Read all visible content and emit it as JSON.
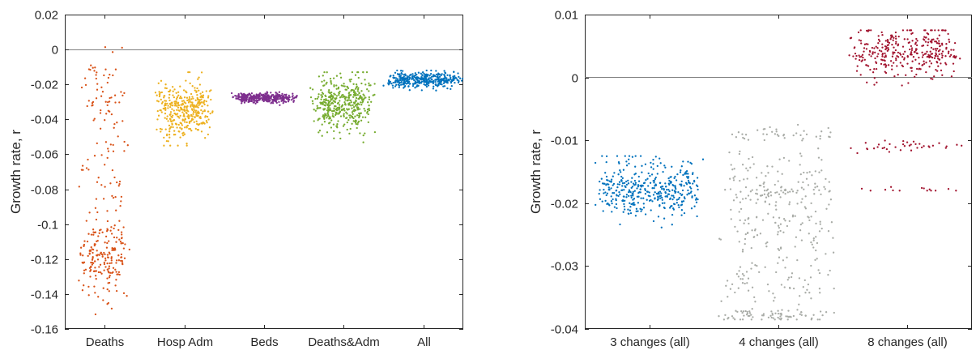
{
  "chart_data": [
    {
      "type": "scatter",
      "title": "",
      "xlabel": "",
      "ylabel": "Growth rate, r",
      "ylim": [
        -0.16,
        0.02
      ],
      "yticks": [
        0.02,
        0,
        -0.02,
        -0.04,
        -0.06,
        -0.08,
        -0.1,
        -0.12,
        -0.14,
        -0.16
      ],
      "ytick_labels": [
        "0.02",
        "0",
        "-0.02",
        "-0.04",
        "-0.06",
        "-0.08",
        "-0.1",
        "-0.12",
        "-0.14",
        "-0.16"
      ],
      "categories": [
        "Deaths",
        "Hosp Adm",
        "Beds",
        "Deaths&Adm",
        "All"
      ],
      "reference_line_y": 0,
      "series": [
        {
          "color": "#d95319",
          "approx_count": 300,
          "clusters": [
            {
              "center": -0.118,
              "sd": 0.011,
              "weight": 0.66
            },
            {
              "center": -0.075,
              "sd": 0.012,
              "weight": 0.12
            },
            {
              "center": -0.03,
              "sd": 0.013,
              "weight": 0.22
            }
          ],
          "range": [
            -0.152,
            0.005
          ],
          "spread": 0.34
        },
        {
          "color": "#edb120",
          "approx_count": 380,
          "clusters": [
            {
              "center": -0.035,
              "sd": 0.0075,
              "weight": 1.0
            }
          ],
          "range": [
            -0.055,
            -0.013
          ],
          "spread": 0.38
        },
        {
          "color": "#7e2f8e",
          "approx_count": 340,
          "clusters": [
            {
              "center": -0.0275,
              "sd": 0.0014,
              "weight": 1.0
            }
          ],
          "range": [
            -0.032,
            -0.023
          ],
          "spread": 0.44
        },
        {
          "color": "#77ac30",
          "approx_count": 420,
          "clusters": [
            {
              "center": -0.031,
              "sd": 0.0075,
              "weight": 1.0
            }
          ],
          "range": [
            -0.054,
            -0.013
          ],
          "spread": 0.42
        },
        {
          "color": "#0072bd",
          "approx_count": 380,
          "clusters": [
            {
              "center": -0.0175,
              "sd": 0.0022,
              "weight": 1.0
            }
          ],
          "range": [
            -0.026,
            -0.012
          ],
          "spread": 0.52
        }
      ]
    },
    {
      "type": "scatter",
      "title": "",
      "xlabel": "",
      "ylabel": "Growth rate, r",
      "ylim": [
        -0.04,
        0.01
      ],
      "yticks": [
        0.01,
        0,
        -0.01,
        -0.02,
        -0.03,
        -0.04
      ],
      "ytick_labels": [
        "0.01",
        "0",
        "-0.01",
        "-0.02",
        "-0.03",
        "-0.04"
      ],
      "categories": [
        "3 changes (all)",
        "4 changes (all)",
        "8 changes (all)"
      ],
      "reference_line_y": 0,
      "series": [
        {
          "color": "#0072bd",
          "approx_count": 400,
          "clusters": [
            {
              "center": -0.0178,
              "sd": 0.0022,
              "weight": 1.0
            }
          ],
          "range": [
            -0.026,
            -0.0125
          ],
          "spread": 0.45
        },
        {
          "color": "#a9aca7",
          "approx_count": 420,
          "clusters": [
            {
              "center": -0.0185,
              "sd": 0.0012,
              "weight": 0.2
            },
            {
              "center": -0.0145,
              "sd": 0.0015,
              "weight": 0.1
            },
            {
              "center": -0.0232,
              "sd": 0.0012,
              "weight": 0.14
            },
            {
              "center": -0.0268,
              "sd": 0.0015,
              "weight": 0.1
            },
            {
              "center": -0.0378,
              "sd": 0.0005,
              "weight": 0.14
            },
            {
              "center": -0.009,
              "sd": 0.0006,
              "weight": 0.1
            },
            {
              "center": -0.031,
              "sd": 0.0013,
              "weight": 0.12
            },
            {
              "center": -0.034,
              "sd": 0.0012,
              "weight": 0.1
            }
          ],
          "range": [
            -0.0385,
            -0.005
          ],
          "spread": 0.5
        },
        {
          "color": "#a2142f",
          "approx_count": 380,
          "clusters": [
            {
              "center": 0.004,
              "sd": 0.0021,
              "weight": 0.86
            },
            {
              "center": -0.011,
              "sd": 0.0005,
              "weight": 0.1
            },
            {
              "center": -0.018,
              "sd": 0.0003,
              "weight": 0.04
            }
          ],
          "range": [
            -0.018,
            0.0075
          ],
          "spread": 0.48
        }
      ]
    }
  ]
}
